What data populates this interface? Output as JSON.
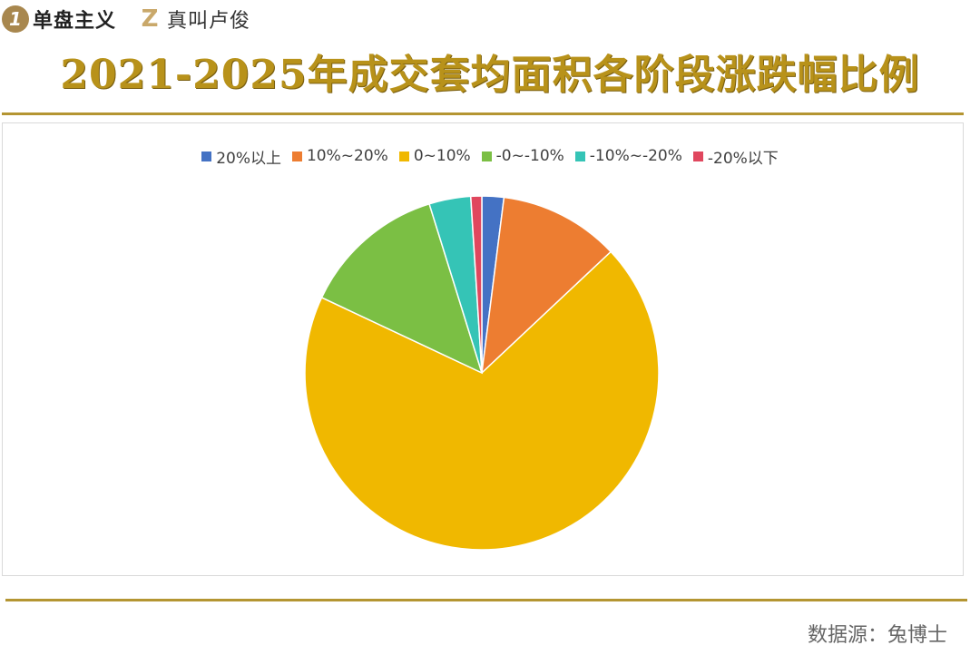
{
  "brand": {
    "logo1_glyph": "1",
    "name1": "单盘主义",
    "logo2_glyph": "Z",
    "name2": "真叫卢俊"
  },
  "title": "2021-2025年成交套均面积各阶段涨跌幅比例",
  "source": "数据源：兔博士",
  "chart_data": {
    "type": "pie",
    "title": "2021-2025年成交套均面积各阶段涨跌幅比例",
    "legend_position": "top",
    "categories": [
      "20%以上",
      "10%~20%",
      "0~10%",
      "-0~-10%",
      "-10%~-20%",
      "-20%以下"
    ],
    "values": [
      2,
      11,
      69,
      13.2,
      3.8,
      1
    ],
    "colors": [
      "#4472c4",
      "#ed7d31",
      "#f0b800",
      "#7bbf44",
      "#35c4b6",
      "#e0475e"
    ],
    "start_angle_deg": 0,
    "direction": "clockwise"
  }
}
